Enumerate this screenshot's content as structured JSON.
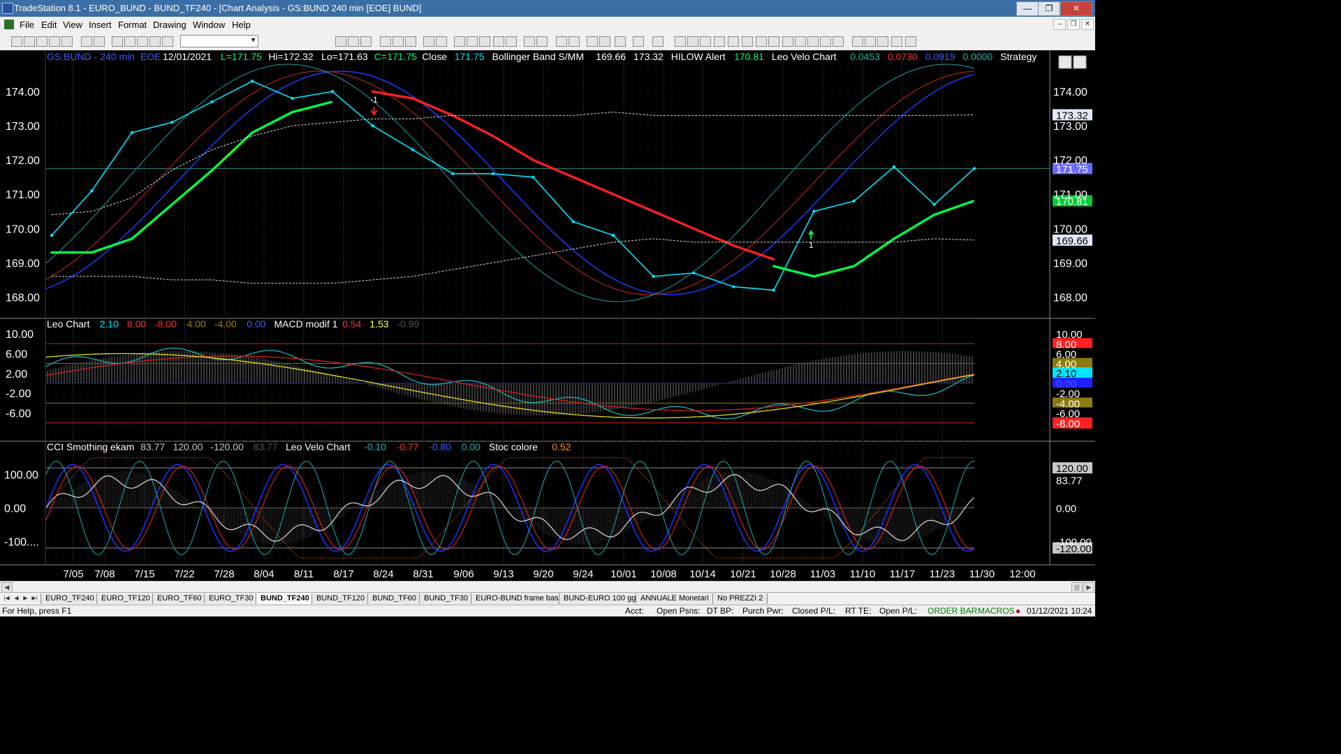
{
  "window": {
    "title": "TradeStation 8.1 - EURO_BUND - BUND_TF240 - [Chart Analysis - GS:BUND  240 min  [EOE] BUND]",
    "min": "—",
    "max": "❐",
    "close": "✕"
  },
  "menu": [
    "File",
    "Edit",
    "View",
    "Insert",
    "Format",
    "Drawing",
    "Window",
    "Help"
  ],
  "price_panel": {
    "header": [
      {
        "text": "GS:BUND - 240 min",
        "color": "#3a5bff"
      },
      {
        "text": "EOE",
        "color": "#3a5bff"
      },
      {
        "text": "12/01/2021",
        "color": "#ffffff"
      },
      {
        "text": "L=171.75",
        "color": "#00ff66"
      },
      {
        "text": "Hi=172.32",
        "color": "#ffffff"
      },
      {
        "text": "Lo=171.63",
        "color": "#ffffff"
      },
      {
        "text": "C=171.75",
        "color": "#00ff66"
      },
      {
        "text": "Close",
        "color": "#ffffff"
      },
      {
        "text": "171.75",
        "color": "#00e5ff"
      },
      {
        "text": "Bollinger Band S/MM",
        "color": "#ffffff"
      },
      {
        "text": "169.66",
        "color": "#ffffff"
      },
      {
        "text": "173.32",
        "color": "#ffffff"
      },
      {
        "text": "HILOW Alert",
        "color": "#ffffff"
      },
      {
        "text": "170.81",
        "color": "#00ff66"
      },
      {
        "text": "Leo Velo Chart",
        "color": "#ffffff"
      },
      {
        "text": "0.0453",
        "color": "#20b2aa"
      },
      {
        "text": "0.0730",
        "color": "#ff3030"
      },
      {
        "text": "0.0919",
        "color": "#3a5bff"
      },
      {
        "text": "0.0000",
        "color": "#20b2aa"
      },
      {
        "text": "Strategy",
        "color": "#ffffff"
      }
    ],
    "y_ticks": [
      "174.00",
      "173.00",
      "172.00",
      "171.00",
      "170.00",
      "169.00",
      "168.00"
    ],
    "tags": [
      {
        "text": "173.32",
        "bg": "#e0e8f8",
        "fg": "#000000"
      },
      {
        "text": "171.75",
        "bg": "#6a6aff",
        "fg": "#ffffff"
      },
      {
        "text": "170.81",
        "bg": "#00cc33",
        "fg": "#ffffff"
      },
      {
        "text": "169.66",
        "bg": "#e0e8f8",
        "fg": "#000000"
      }
    ],
    "strategy_labels": [
      "-1",
      "1"
    ]
  },
  "macd_panel": {
    "header": [
      {
        "text": "Leo Chart",
        "color": "#ffffff"
      },
      {
        "text": "2.10",
        "color": "#00e5ff"
      },
      {
        "text": "8.00",
        "color": "#ff3030"
      },
      {
        "text": "-8.00",
        "color": "#ff3030"
      },
      {
        "text": "4.00",
        "color": "#a08000"
      },
      {
        "text": "-4.00",
        "color": "#a08000"
      },
      {
        "text": "0.00",
        "color": "#3a5bff"
      },
      {
        "text": "MACD modif 1",
        "color": "#ffffff"
      },
      {
        "text": "0.54",
        "color": "#ff3030"
      },
      {
        "text": "1.53",
        "color": "#ffff40"
      },
      {
        "text": "-0.99",
        "color": "#505050"
      }
    ],
    "y_ticks": [
      "10.00",
      "6.00",
      "2.00",
      "-2.00",
      "-6.00"
    ],
    "tags": [
      {
        "text": "10.00",
        "bg": "#000000",
        "fg": "#ffffff"
      },
      {
        "text": "8.00",
        "bg": "#ff2020",
        "fg": "#ffffff"
      },
      {
        "text": "6.00",
        "bg": "#000000",
        "fg": "#ffffff"
      },
      {
        "text": "4.00",
        "bg": "#8a7a10",
        "fg": "#ffffff"
      },
      {
        "text": "2.10",
        "bg": "#00e5ff",
        "fg": "#000000"
      },
      {
        "text": "0.00",
        "bg": "#2020ff",
        "fg": "#3a5bff"
      },
      {
        "text": "-2.00",
        "bg": "#000000",
        "fg": "#ffffff"
      },
      {
        "text": "-4.00",
        "bg": "#8a7a10",
        "fg": "#ffffff"
      },
      {
        "text": "-6.00",
        "bg": "#000000",
        "fg": "#ffffff"
      },
      {
        "text": "-8.00",
        "bg": "#ff2020",
        "fg": "#ffffff"
      }
    ]
  },
  "cci_panel": {
    "header": [
      {
        "text": "CCI Smothing ekam",
        "color": "#ffffff"
      },
      {
        "text": "83.77",
        "color": "#c8c8c8"
      },
      {
        "text": "120.00",
        "color": "#c8c8c8"
      },
      {
        "text": "-120.00",
        "color": "#c8c8c8"
      },
      {
        "text": "83.77",
        "color": "#505050"
      },
      {
        "text": "Leo Velo Chart",
        "color": "#ffffff"
      },
      {
        "text": "-0.10",
        "color": "#20b2aa"
      },
      {
        "text": "-0.77",
        "color": "#ff3030"
      },
      {
        "text": "-0.80",
        "color": "#3a5bff"
      },
      {
        "text": "0.00",
        "color": "#20b2aa"
      },
      {
        "text": "Stoc colore",
        "color": "#ffffff"
      },
      {
        "text": "0.52",
        "color": "#ff9020"
      }
    ],
    "y_ticks": [
      "100.00",
      "0.00",
      "-100...."
    ],
    "tags": [
      {
        "text": "120.00",
        "bg": "#c8c8c8",
        "fg": "#000000"
      },
      {
        "text": "83.77",
        "bg": "#000000",
        "fg": "#ffffff"
      },
      {
        "text": "0.00",
        "bg": "#000000",
        "fg": "#ffffff"
      },
      {
        "text": "-100.00",
        "bg": "#000000",
        "fg": "#ffffff"
      },
      {
        "text": "-120.00",
        "bg": "#c8c8c8",
        "fg": "#000000"
      }
    ]
  },
  "x_axis": [
    "7/05",
    "7/08",
    "7/15",
    "7/22",
    "7/28",
    "8/04",
    "8/11",
    "8/17",
    "8/24",
    "8/31",
    "9/06",
    "9/13",
    "9/20",
    "9/24",
    "10/01",
    "10/08",
    "10/14",
    "10/21",
    "10/28",
    "11/03",
    "11/10",
    "11/17",
    "11/23",
    "11/30",
    "12:00"
  ],
  "tabs": [
    "EURO_TF240",
    "EURO_TF120",
    "EURO_TF60",
    "EURO_TF30",
    "BUND_TF240",
    "BUND_TF120",
    "BUND_TF60",
    "BUND_TF30",
    "EURO-BUND frame bassi",
    "BUND-EURO 100 gg",
    "ANNUALE Monetari",
    "No PREZZI 2"
  ],
  "active_tab": "BUND_TF240",
  "status": {
    "help": "For Help, press F1",
    "acct": "Acct:",
    "open_psns": "Open Psns:",
    "dt_bp": "DT BP:",
    "purch_pwr": "Purch Pwr:",
    "closed_pl": "Closed P/L:",
    "rt_te": "RT TE:",
    "open_pl": "Open P/L:",
    "order_bar": "ORDER BAR",
    "macros": "MACROS",
    "datetime": "01/12/2021 10:24"
  },
  "chart_data": {
    "type": "line",
    "x": [
      "7/05",
      "7/08",
      "7/15",
      "7/22",
      "7/28",
      "8/04",
      "8/11",
      "8/17",
      "8/24",
      "8/31",
      "9/06",
      "9/13",
      "9/20",
      "9/24",
      "10/01",
      "10/08",
      "10/14",
      "10/21",
      "10/28",
      "11/03",
      "11/10",
      "11/17",
      "11/23",
      "11/30"
    ],
    "ylim": [
      167.6,
      175.0
    ],
    "series": [
      {
        "name": "Close",
        "color": "#00e5ff",
        "values": [
          169.8,
          171.1,
          172.8,
          173.1,
          173.7,
          174.3,
          173.8,
          174.0,
          173.0,
          172.3,
          171.6,
          171.6,
          171.5,
          170.2,
          169.8,
          168.6,
          168.7,
          168.3,
          168.2,
          170.5,
          170.8,
          171.8,
          170.7,
          171.75
        ]
      },
      {
        "name": "HILOW Alert",
        "color": "#00ff44",
        "values": [
          169.3,
          169.3,
          169.7,
          170.7,
          171.7,
          172.8,
          173.4,
          173.7,
          null,
          null,
          null,
          null,
          null,
          null,
          null,
          null,
          null,
          null,
          168.9,
          168.6,
          168.9,
          169.7,
          170.4,
          170.81
        ]
      },
      {
        "name": "HILOW Alert",
        "color": "#ff2020",
        "values": [
          null,
          null,
          null,
          null,
          null,
          null,
          null,
          null,
          174.0,
          173.8,
          173.3,
          172.7,
          172.0,
          171.5,
          171.0,
          170.5,
          170.0,
          169.5,
          169.1,
          null,
          null,
          null,
          null,
          null
        ]
      },
      {
        "name": "Bollinger Band S/MM",
        "color": "#dcdcdc",
        "values": [
          170.4,
          170.5,
          170.9,
          171.7,
          172.3,
          172.7,
          173.0,
          173.1,
          173.2,
          173.2,
          173.3,
          173.3,
          173.3,
          173.3,
          173.4,
          173.3,
          173.3,
          173.3,
          173.3,
          173.3,
          173.3,
          173.3,
          173.3,
          173.32
        ]
      },
      {
        "name": "Bollinger Band S/MM",
        "color": "#dcdcdc",
        "values": [
          168.6,
          168.6,
          168.6,
          168.5,
          168.5,
          168.4,
          168.4,
          168.4,
          168.5,
          168.6,
          168.8,
          169.0,
          169.2,
          169.4,
          169.6,
          169.7,
          169.6,
          169.6,
          169.6,
          169.6,
          169.6,
          169.6,
          169.7,
          169.66
        ]
      }
    ]
  }
}
